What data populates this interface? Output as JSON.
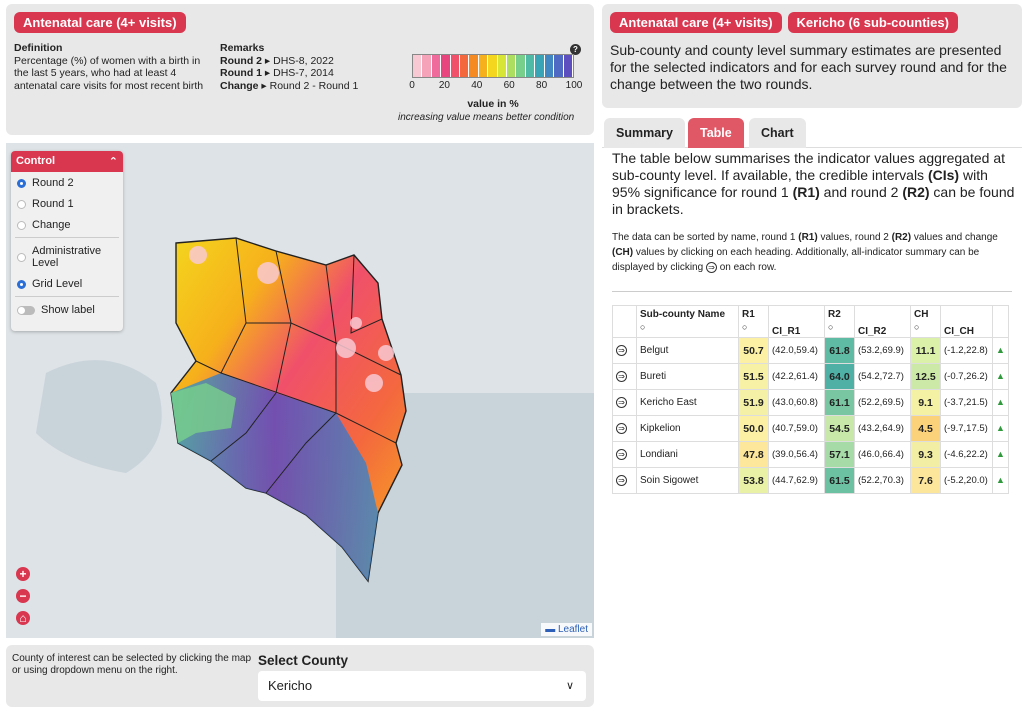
{
  "indicator_badge": "Antenatal care (4+ visits)",
  "legend_panel": {
    "definition_title": "Definition",
    "definition_text": "Percentage (%) of women with a birth in the last 5 years, who had at least 4 antenatal care visits for most recent birth",
    "remarks_title": "Remarks",
    "round2_key": "Round 2",
    "round2_value": "DHS-8, 2022",
    "round1_key": "Round 1",
    "round1_value": "DHS-7, 2014",
    "change_key": "Change",
    "change_value": "Round 2 - Round 1",
    "scale_ticks": [
      "0",
      "20",
      "40",
      "60",
      "80",
      "100"
    ],
    "scale_colors": [
      "#f9c9d3",
      "#f4a3b8",
      "#ee6b9b",
      "#e8457e",
      "#f0506a",
      "#f4683e",
      "#f68a22",
      "#f6b01b",
      "#f4d61e",
      "#d7e537",
      "#aede5f",
      "#78cf8b",
      "#4fbba6",
      "#3aa4b7",
      "#4187c2",
      "#4f6ac3",
      "#5d4fbd"
    ],
    "scale_title": "value in %",
    "scale_subtitle": "increasing value means better condition",
    "help_symbol": "?"
  },
  "map": {
    "control": {
      "title": "Control",
      "options": [
        {
          "label": "Round 2",
          "selected": true
        },
        {
          "label": "Round 1",
          "selected": false
        },
        {
          "label": "Change",
          "selected": false
        }
      ],
      "levels": [
        {
          "label": "Administrative Level",
          "selected": false
        },
        {
          "label": "Grid Level",
          "selected": true
        }
      ],
      "show_label": "Show label"
    },
    "zoom_in": "+",
    "zoom_out": "−",
    "home": "⌂",
    "attribution": "Leaflet"
  },
  "select_county": {
    "help_text": "County of interest can be selected by clicking the map or using dropdown menu on the right.",
    "label": "Select County",
    "value": "Kericho"
  },
  "right_header": {
    "indicator_badge": "Antenatal care (4+ visits)",
    "county_badge": "Kericho (6 sub-counties)",
    "description": "Sub-county and county level summary estimates are presented for the selected indicators and for each survey round and for the change between the two rounds."
  },
  "tabs": [
    "Summary",
    "Table",
    "Chart"
  ],
  "table_section": {
    "intro_a": "The table below summarises the indicator values aggregated at sub-county level. If available, the credible intervals ",
    "intro_b": "(CIs)",
    "intro_c": " with 95% significance for round 1 ",
    "intro_d": "(R1)",
    "intro_e": " and round 2 ",
    "intro_f": "(R2)",
    "intro_g": " can be found in brackets.",
    "note_a": "The data can be sorted by name, round 1 ",
    "note_b": "(R1)",
    "note_c": " values, round 2 ",
    "note_d": "(R2)",
    "note_e": " values and change ",
    "note_f": "(CH)",
    "note_g": " values by clicking on each heading. Additionally, all-indicator summary can be displayed by clicking ",
    "note_h": " on each row.",
    "columns": [
      "Sub-county Name",
      "R1",
      "CI_R1",
      "R2",
      "CI_R2",
      "CH",
      "CI_CH"
    ],
    "sort_symbol": "○",
    "row_icon": "⇒",
    "trend_icon": "▲",
    "rows": [
      {
        "name": "Belgut",
        "r1": "50.7",
        "ci_r1": "(42.0,59.4)",
        "r2": "61.8",
        "ci_r2": "(53.2,69.9)",
        "ch": "11.1",
        "ci_ch": "(-1.2,22.8)",
        "r1_color": "#fbf0a4",
        "r2_color": "#5fbba3",
        "ch_color": "#dbf0a8"
      },
      {
        "name": "Bureti",
        "r1": "51.5",
        "ci_r1": "(42.2,61.4)",
        "r2": "64.0",
        "ci_r2": "(54.2,72.7)",
        "ch": "12.5",
        "ci_ch": "(-0.7,26.2)",
        "r1_color": "#f6f1a4",
        "r2_color": "#4fb0a6",
        "ch_color": "#cde9a8"
      },
      {
        "name": "Kericho East",
        "r1": "51.9",
        "ci_r1": "(43.0,60.8)",
        "r2": "61.1",
        "ci_r2": "(52.2,69.5)",
        "ch": "9.1",
        "ci_ch": "(-3.7,21.5)",
        "r1_color": "#f4f1a6",
        "r2_color": "#78c6a2",
        "ch_color": "#f4f0a4"
      },
      {
        "name": "Kipkelion",
        "r1": "50.0",
        "ci_r1": "(40.7,59.0)",
        "r2": "54.5",
        "ci_r2": "(43.2,64.9)",
        "ch": "4.5",
        "ci_ch": "(-9.7,17.5)",
        "r1_color": "#fbf0a4",
        "r2_color": "#c7e8a9",
        "ch_color": "#fbd27a"
      },
      {
        "name": "Londiani",
        "r1": "47.8",
        "ci_r1": "(39.0,56.4)",
        "r2": "57.1",
        "ci_r2": "(46.0,66.4)",
        "ch": "9.3",
        "ci_ch": "(-4.6,22.2)",
        "r1_color": "#fde79b",
        "r2_color": "#a6dba8",
        "ch_color": "#f2efa4"
      },
      {
        "name": "Soin Sigowet",
        "r1": "53.8",
        "ci_r1": "(44.7,62.9)",
        "r2": "61.5",
        "ci_r2": "(52.2,70.3)",
        "ch": "7.6",
        "ci_ch": "(-5.2,20.0)",
        "r1_color": "#e9f1a7",
        "r2_color": "#6cc1a3",
        "ch_color": "#fbe69c"
      }
    ]
  }
}
